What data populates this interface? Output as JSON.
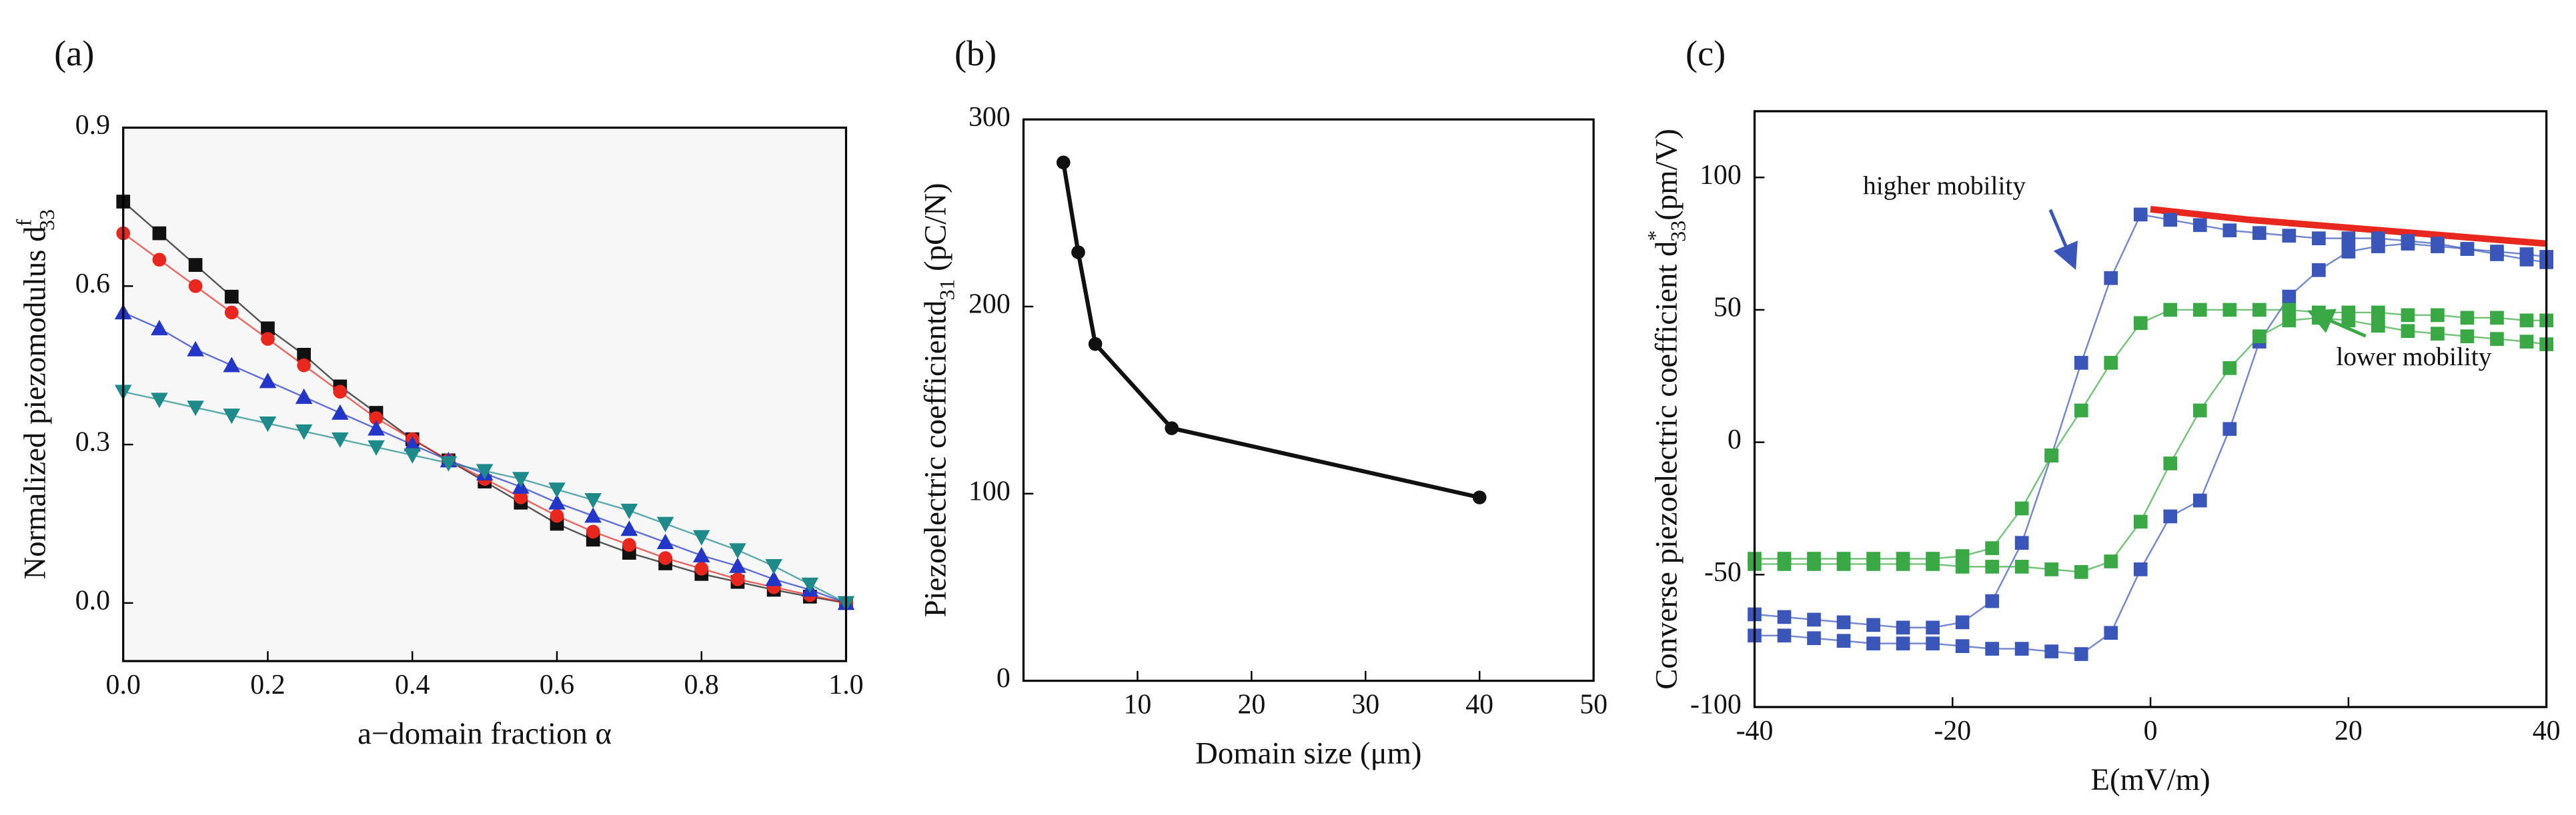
{
  "chart_data": [
    {
      "type": "line",
      "panel_label": "(a)",
      "x_label": "a−domain fraction α",
      "y_label": "Normalized  piezomodulus  d",
      "y_label_sub": "33",
      "y_label_sup": "f",
      "x": [
        0,
        0.05,
        0.1,
        0.15,
        0.2,
        0.25,
        0.3,
        0.35,
        0.4,
        0.45,
        0.5,
        0.55,
        0.6,
        0.65,
        0.7,
        0.75,
        0.8,
        0.85,
        0.9,
        0.95,
        1.0
      ],
      "series": [
        {
          "color": "#111111",
          "marker": "square",
          "values": [
            0.76,
            0.7,
            0.64,
            0.58,
            0.52,
            0.47,
            0.41,
            0.36,
            0.31,
            0.27,
            0.23,
            0.19,
            0.15,
            0.12,
            0.095,
            0.075,
            0.055,
            0.04,
            0.025,
            0.012,
            0
          ]
        },
        {
          "color": "#e8271f",
          "marker": "circle",
          "values": [
            0.7,
            0.65,
            0.6,
            0.55,
            0.5,
            0.45,
            0.4,
            0.35,
            0.31,
            0.27,
            0.235,
            0.2,
            0.165,
            0.135,
            0.11,
            0.085,
            0.065,
            0.045,
            0.03,
            0.015,
            0
          ]
        },
        {
          "color": "#2436c8",
          "marker": "triangle",
          "values": [
            0.55,
            0.52,
            0.48,
            0.45,
            0.42,
            0.39,
            0.36,
            0.33,
            0.3,
            0.27,
            0.245,
            0.22,
            0.19,
            0.165,
            0.14,
            0.115,
            0.09,
            0.07,
            0.045,
            0.025,
            0
          ]
        },
        {
          "color": "#1e8a8a",
          "marker": "triangle-down",
          "values": [
            0.4,
            0.385,
            0.37,
            0.355,
            0.34,
            0.325,
            0.31,
            0.295,
            0.28,
            0.265,
            0.25,
            0.235,
            0.215,
            0.195,
            0.175,
            0.15,
            0.125,
            0.1,
            0.07,
            0.035,
            0
          ]
        }
      ],
      "xlim": [
        0,
        1
      ],
      "ylim": [
        -0.11,
        0.9
      ],
      "xticks": [
        {
          "value": 0,
          "label": "0.0"
        },
        {
          "value": 0.2,
          "label": "0.2"
        },
        {
          "value": 0.4,
          "label": "0.4"
        },
        {
          "value": 0.6,
          "label": "0.6"
        },
        {
          "value": 0.8,
          "label": "0.8"
        },
        {
          "value": 1,
          "label": "1.0"
        }
      ],
      "yticks": [
        {
          "value": 0,
          "label": "0.0"
        },
        {
          "value": 0.3,
          "label": "0.3"
        },
        {
          "value": 0.6,
          "label": "0.6"
        },
        {
          "value": 0.9,
          "label": "0.9"
        }
      ]
    },
    {
      "type": "line",
      "panel_label": "(b)",
      "x_label": "Domain size (μm)",
      "y_label": "Piezoelectric coefficientd",
      "y_label_sub": "31",
      "y_label_unit": " (pC/N)",
      "series": [
        {
          "color": "#111111",
          "marker": "circle",
          "x": [
            3.5,
            4.8,
            6.3,
            13,
            40
          ],
          "values": [
            277,
            229,
            180,
            135,
            98
          ]
        }
      ],
      "xlim": [
        0,
        50
      ],
      "ylim": [
        0,
        300
      ],
      "xticks": [
        10,
        20,
        30,
        40,
        50
      ],
      "yticks": [
        0,
        100,
        200,
        300
      ]
    },
    {
      "type": "line",
      "panel_label": "(c)",
      "x_label": "E(mV/m)",
      "y_label": "Converse piezoelectric coefficient d",
      "y_label_sub": "33",
      "y_label_sup": "*",
      "y_label_unit": "(pm/V)",
      "annotations": [
        "higher mobility",
        "lower mobility"
      ],
      "series": [
        {
          "color": "#e8271f",
          "marker": "none",
          "x": [
            0,
            10,
            20,
            30,
            40
          ],
          "values": [
            88,
            84,
            81,
            78,
            75
          ]
        },
        {
          "color": "#3a56b8",
          "marker": "square",
          "x": [
            -40,
            -37,
            -34,
            -31,
            -28,
            -25,
            -22,
            -19,
            -16,
            -13,
            -10,
            -7,
            -4,
            -1,
            2,
            5,
            8,
            11,
            14,
            17,
            20,
            23,
            26,
            29,
            32,
            35,
            38,
            40
          ],
          "values": [
            -73,
            -73,
            -74,
            -75,
            -76,
            -76,
            -76,
            -77,
            -78,
            -78,
            -79,
            -80,
            -72,
            -48,
            -28,
            -22,
            5,
            38,
            55,
            65,
            72,
            74,
            75,
            74,
            73,
            72,
            71,
            70
          ]
        },
        {
          "color": "#3a56b8",
          "marker": "square",
          "x": [
            -40,
            -37,
            -34,
            -31,
            -28,
            -25,
            -22,
            -19,
            -16,
            -13,
            -10,
            -7,
            -4,
            -1,
            2,
            5,
            8,
            11,
            14,
            17,
            20,
            23,
            26,
            29,
            32,
            35,
            38,
            40
          ],
          "values": [
            -65,
            -66,
            -67,
            -68,
            -69,
            -70,
            -70,
            -68,
            -60,
            -38,
            -5,
            30,
            62,
            86,
            84,
            82,
            80,
            79,
            78,
            77,
            77,
            77,
            76,
            75,
            73,
            71,
            69,
            68
          ]
        },
        {
          "color": "#3aa845",
          "marker": "square",
          "x": [
            -40,
            -37,
            -34,
            -31,
            -28,
            -25,
            -22,
            -19,
            -16,
            -13,
            -10,
            -7,
            -4,
            -1,
            2,
            5,
            8,
            11,
            14,
            17,
            20,
            23,
            26,
            29,
            32,
            35,
            38,
            40
          ],
          "values": [
            -44,
            -44,
            -44,
            -44,
            -44,
            -44,
            -44,
            -43,
            -40,
            -25,
            -5,
            12,
            30,
            45,
            50,
            50,
            50,
            50,
            50,
            49,
            49,
            49,
            48,
            48,
            47,
            47,
            46,
            46
          ]
        },
        {
          "color": "#3aa845",
          "marker": "square",
          "x": [
            -40,
            -37,
            -34,
            -31,
            -28,
            -25,
            -22,
            -19,
            -16,
            -13,
            -10,
            -7,
            -4,
            -1,
            2,
            5,
            8,
            11,
            14,
            17,
            20,
            23,
            26,
            29,
            32,
            35,
            38,
            40
          ],
          "values": [
            -46,
            -46,
            -46,
            -46,
            -46,
            -46,
            -46,
            -47,
            -47,
            -47,
            -48,
            -49,
            -45,
            -30,
            -8,
            12,
            28,
            40,
            46,
            47,
            46,
            44,
            42,
            41,
            40,
            39,
            38,
            37
          ]
        }
      ],
      "xlim": [
        -40,
        40
      ],
      "ylim": [
        -100,
        125
      ],
      "xticks": [
        -40,
        -20,
        0,
        20,
        40
      ],
      "yticks": [
        -100,
        -50,
        0,
        50,
        100
      ]
    }
  ]
}
